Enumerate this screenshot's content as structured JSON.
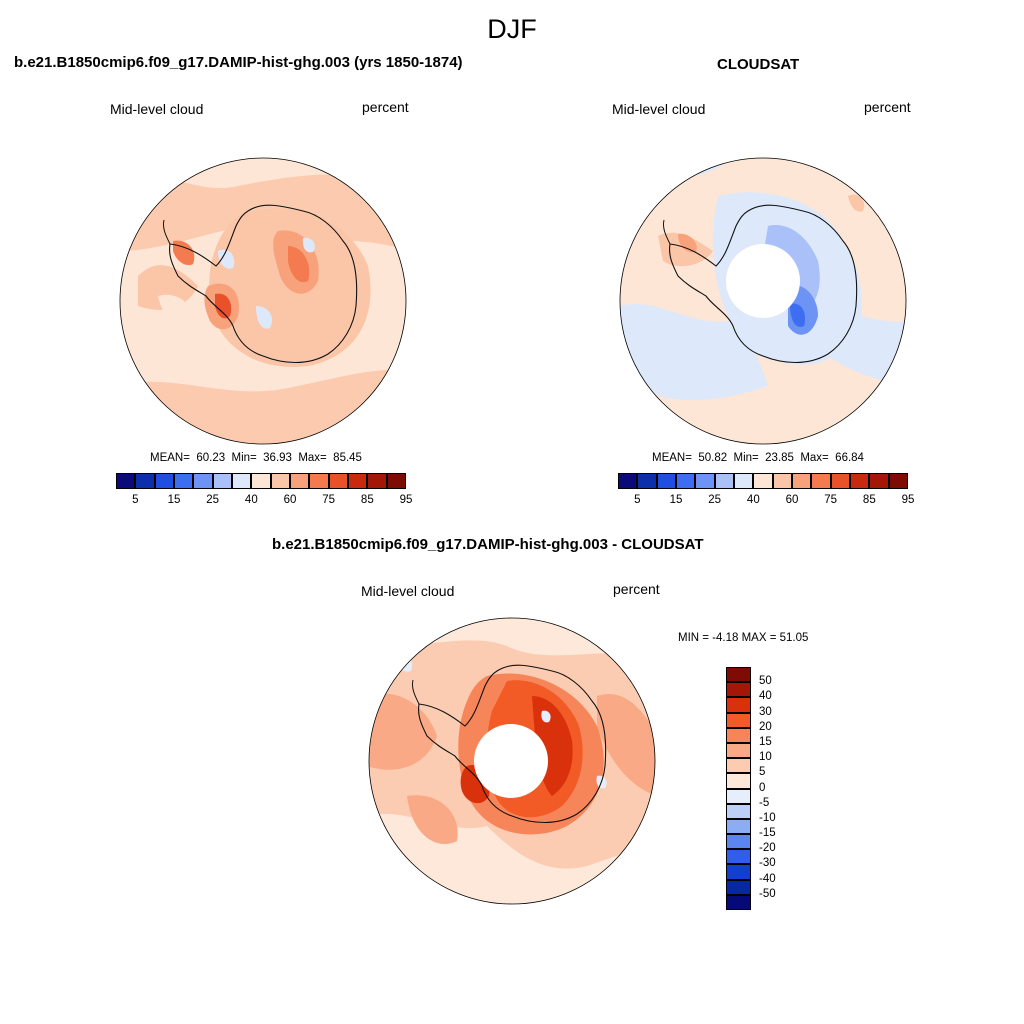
{
  "figure": {
    "season": "DJF",
    "panel_left": {
      "title": "b.e21.B1850cmip6.f09_g17.DAMIP-hist-ghg.003 (yrs 1850-1874)",
      "variable": "Mid-level cloud",
      "units": "percent",
      "stats": {
        "mean_label": "MEAN=",
        "mean": "60.23",
        "min_label": "Min=",
        "min": "36.93",
        "max_label": "Max=",
        "max": "85.45"
      }
    },
    "panel_right": {
      "title": "CLOUDSAT",
      "variable": "Mid-level cloud",
      "units": "percent",
      "stats": {
        "mean_label": "MEAN=",
        "mean": "50.82",
        "min_label": "Min=",
        "min": "23.85",
        "max_label": "Max=",
        "max": "66.84"
      }
    },
    "panel_diff": {
      "title": "b.e21.B1850cmip6.f09_g17.DAMIP-hist-ghg.003 - CLOUDSAT",
      "variable": "Mid-level cloud",
      "units": "percent",
      "stats_text": "MIN =  -4.18 MAX =  51.05"
    },
    "abs_colorbar": {
      "colors": [
        "#0a0a78",
        "#0c2faa",
        "#1f4fe0",
        "#3d6ef2",
        "#6d93f5",
        "#a9c1f8",
        "#dde9fb",
        "#fde6d5",
        "#fbc5a8",
        "#f8a27c",
        "#f47a4f",
        "#e9512b",
        "#c9290f",
        "#a41707",
        "#7e0c04"
      ],
      "tick_labels": [
        "5",
        "15",
        "25",
        "40",
        "60",
        "75",
        "85",
        "95"
      ]
    },
    "diff_colorbar": {
      "colors": [
        "#7e0c04",
        "#a41707",
        "#d9310c",
        "#f25a26",
        "#f7855a",
        "#f9a985",
        "#fbccb2",
        "#fde8da",
        "#e6eefb",
        "#bcd0f7",
        "#8cacf3",
        "#5c86ef",
        "#2f5fe8",
        "#1140cf",
        "#0828a0",
        "#050a78"
      ],
      "tick_labels": [
        "50",
        "40",
        "30",
        "20",
        "15",
        "10",
        "5",
        "0",
        "-5",
        "-10",
        "-15",
        "-20",
        "-30",
        "-40",
        "-50"
      ]
    }
  }
}
